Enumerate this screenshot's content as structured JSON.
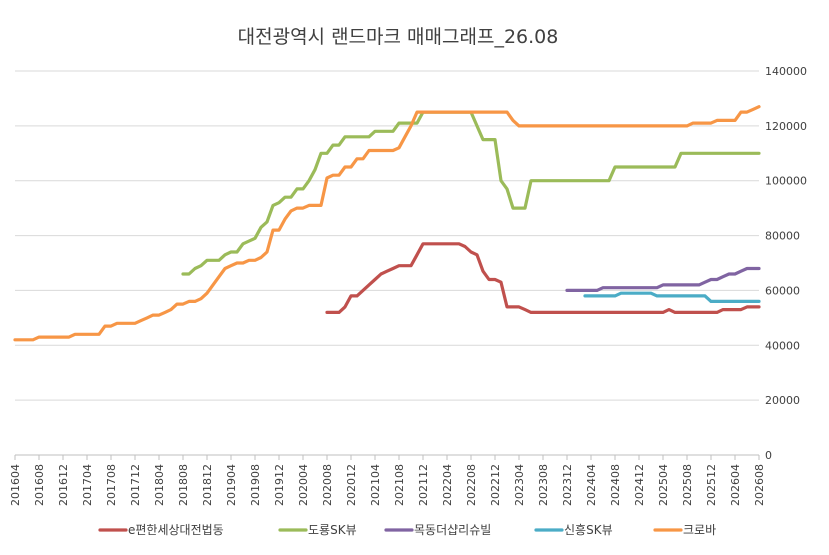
{
  "chart_data": {
    "type": "line",
    "title": "대전광역시 랜드마크 매매그래프_26.08",
    "xlabel": "",
    "ylabel": "",
    "ylim": [
      0,
      140000
    ],
    "yticks": [
      0,
      20000,
      40000,
      60000,
      80000,
      100000,
      120000,
      140000
    ],
    "ytick_labels": [
      "0",
      "20000",
      "40000",
      "60000",
      "80000",
      "100000",
      "120000",
      "140000"
    ],
    "y_axis_side": "right",
    "grid": true,
    "legend_position": "bottom",
    "x_start": "2016-04",
    "x_end": "2026-08",
    "xtick_labels": [
      "201604",
      "201608",
      "201612",
      "201704",
      "201708",
      "201712",
      "201804",
      "201808",
      "201812",
      "201904",
      "201908",
      "201912",
      "202004",
      "202008",
      "202012",
      "202104",
      "202108",
      "202112",
      "202204",
      "202208",
      "202212",
      "202304",
      "202308",
      "202312",
      "202404",
      "202408",
      "202412",
      "202504",
      "202508",
      "202512",
      "202604",
      "202608"
    ],
    "series": [
      {
        "name": "e편한세상대전법동",
        "color": "#C0504D",
        "points": [
          [
            "2020-08",
            52000
          ],
          [
            "2020-10",
            52000
          ],
          [
            "2020-11",
            54000
          ],
          [
            "2020-12",
            58000
          ],
          [
            "2021-01",
            58000
          ],
          [
            "2021-02",
            60000
          ],
          [
            "2021-03",
            62000
          ],
          [
            "2021-04",
            64000
          ],
          [
            "2021-05",
            66000
          ],
          [
            "2021-06",
            67000
          ],
          [
            "2021-07",
            68000
          ],
          [
            "2021-08",
            69000
          ],
          [
            "2021-10",
            69000
          ],
          [
            "2021-11",
            73000
          ],
          [
            "2021-12",
            77000
          ],
          [
            "2022-06",
            77000
          ],
          [
            "2022-07",
            76000
          ],
          [
            "2022-08",
            74000
          ],
          [
            "2022-09",
            73000
          ],
          [
            "2022-10",
            67000
          ],
          [
            "2022-11",
            64000
          ],
          [
            "2022-12",
            64000
          ],
          [
            "2023-01",
            63000
          ],
          [
            "2023-02",
            54000
          ],
          [
            "2023-04",
            54000
          ],
          [
            "2023-05",
            53000
          ],
          [
            "2023-06",
            52000
          ],
          [
            "2025-04",
            52000
          ],
          [
            "2025-05",
            53000
          ],
          [
            "2025-06",
            52000
          ],
          [
            "2026-01",
            52000
          ],
          [
            "2026-02",
            53000
          ],
          [
            "2026-05",
            53000
          ],
          [
            "2026-06",
            54000
          ],
          [
            "2026-08",
            54000
          ]
        ]
      },
      {
        "name": "도룡SK뷰",
        "color": "#9BBB59",
        "points": [
          [
            "2018-08",
            66000
          ],
          [
            "2018-09",
            66000
          ],
          [
            "2018-10",
            68000
          ],
          [
            "2018-11",
            69000
          ],
          [
            "2018-12",
            71000
          ],
          [
            "2019-02",
            71000
          ],
          [
            "2019-03",
            73000
          ],
          [
            "2019-04",
            74000
          ],
          [
            "2019-05",
            74000
          ],
          [
            "2019-06",
            77000
          ],
          [
            "2019-07",
            78000
          ],
          [
            "2019-08",
            79000
          ],
          [
            "2019-09",
            83000
          ],
          [
            "2019-10",
            85000
          ],
          [
            "2019-11",
            91000
          ],
          [
            "2019-12",
            92000
          ],
          [
            "2020-01",
            94000
          ],
          [
            "2020-02",
            94000
          ],
          [
            "2020-03",
            97000
          ],
          [
            "2020-04",
            97000
          ],
          [
            "2020-05",
            100000
          ],
          [
            "2020-06",
            104000
          ],
          [
            "2020-07",
            110000
          ],
          [
            "2020-08",
            110000
          ],
          [
            "2020-09",
            113000
          ],
          [
            "2020-10",
            113000
          ],
          [
            "2020-11",
            116000
          ],
          [
            "2021-03",
            116000
          ],
          [
            "2021-04",
            118000
          ],
          [
            "2021-07",
            118000
          ],
          [
            "2021-08",
            121000
          ],
          [
            "2021-11",
            121000
          ],
          [
            "2021-12",
            125000
          ],
          [
            "2022-08",
            125000
          ],
          [
            "2022-09",
            120000
          ],
          [
            "2022-10",
            115000
          ],
          [
            "2022-12",
            115000
          ],
          [
            "2023-01",
            100000
          ],
          [
            "2023-02",
            97000
          ],
          [
            "2023-03",
            90000
          ],
          [
            "2023-05",
            90000
          ],
          [
            "2023-06",
            100000
          ],
          [
            "2024-07",
            100000
          ],
          [
            "2024-08",
            105000
          ],
          [
            "2025-06",
            105000
          ],
          [
            "2025-07",
            110000
          ],
          [
            "2026-08",
            110000
          ]
        ]
      },
      {
        "name": "목동더샵리슈빌",
        "color": "#8064A2",
        "points": [
          [
            "2023-12",
            60000
          ],
          [
            "2024-05",
            60000
          ],
          [
            "2024-06",
            61000
          ],
          [
            "2025-03",
            61000
          ],
          [
            "2025-04",
            62000
          ],
          [
            "2025-10",
            62000
          ],
          [
            "2025-11",
            63000
          ],
          [
            "2025-12",
            64000
          ],
          [
            "2026-01",
            64000
          ],
          [
            "2026-02",
            65000
          ],
          [
            "2026-03",
            66000
          ],
          [
            "2026-04",
            66000
          ],
          [
            "2026-05",
            67000
          ],
          [
            "2026-06",
            68000
          ],
          [
            "2026-08",
            68000
          ]
        ]
      },
      {
        "name": "신흥SK뷰",
        "color": "#4BACC6",
        "points": [
          [
            "2024-03",
            58000
          ],
          [
            "2024-08",
            58000
          ],
          [
            "2024-09",
            59000
          ],
          [
            "2025-02",
            59000
          ],
          [
            "2025-03",
            58000
          ],
          [
            "2025-11",
            58000
          ],
          [
            "2025-12",
            56000
          ],
          [
            "2026-08",
            56000
          ]
        ]
      },
      {
        "name": "크로바",
        "color": "#F79646",
        "points": [
          [
            "2016-04",
            42000
          ],
          [
            "2016-07",
            42000
          ],
          [
            "2016-08",
            43000
          ],
          [
            "2017-01",
            43000
          ],
          [
            "2017-02",
            44000
          ],
          [
            "2017-06",
            44000
          ],
          [
            "2017-07",
            47000
          ],
          [
            "2017-08",
            47000
          ],
          [
            "2017-09",
            48000
          ],
          [
            "2017-12",
            48000
          ],
          [
            "2018-01",
            49000
          ],
          [
            "2018-02",
            50000
          ],
          [
            "2018-03",
            51000
          ],
          [
            "2018-04",
            51000
          ],
          [
            "2018-05",
            52000
          ],
          [
            "2018-06",
            53000
          ],
          [
            "2018-07",
            55000
          ],
          [
            "2018-08",
            55000
          ],
          [
            "2018-09",
            56000
          ],
          [
            "2018-10",
            56000
          ],
          [
            "2018-11",
            57000
          ],
          [
            "2018-12",
            59000
          ],
          [
            "2019-01",
            62000
          ],
          [
            "2019-02",
            65000
          ],
          [
            "2019-03",
            68000
          ],
          [
            "2019-04",
            69000
          ],
          [
            "2019-05",
            70000
          ],
          [
            "2019-06",
            70000
          ],
          [
            "2019-07",
            71000
          ],
          [
            "2019-08",
            71000
          ],
          [
            "2019-09",
            72000
          ],
          [
            "2019-10",
            74000
          ],
          [
            "2019-11",
            82000
          ],
          [
            "2019-12",
            82000
          ],
          [
            "2020-01",
            86000
          ],
          [
            "2020-02",
            89000
          ],
          [
            "2020-03",
            90000
          ],
          [
            "2020-04",
            90000
          ],
          [
            "2020-05",
            91000
          ],
          [
            "2020-07",
            91000
          ],
          [
            "2020-08",
            101000
          ],
          [
            "2020-09",
            102000
          ],
          [
            "2020-10",
            102000
          ],
          [
            "2020-11",
            105000
          ],
          [
            "2020-12",
            105000
          ],
          [
            "2021-01",
            108000
          ],
          [
            "2021-02",
            108000
          ],
          [
            "2021-03",
            111000
          ],
          [
            "2021-07",
            111000
          ],
          [
            "2021-08",
            112000
          ],
          [
            "2021-09",
            116000
          ],
          [
            "2021-10",
            120000
          ],
          [
            "2021-11",
            125000
          ],
          [
            "2023-02",
            125000
          ],
          [
            "2023-03",
            122000
          ],
          [
            "2023-04",
            120000
          ],
          [
            "2025-08",
            120000
          ],
          [
            "2025-09",
            121000
          ],
          [
            "2025-12",
            121000
          ],
          [
            "2026-01",
            122000
          ],
          [
            "2026-04",
            122000
          ],
          [
            "2026-05",
            125000
          ],
          [
            "2026-06",
            125000
          ],
          [
            "2026-07",
            126000
          ],
          [
            "2026-08",
            127000
          ]
        ]
      }
    ]
  }
}
